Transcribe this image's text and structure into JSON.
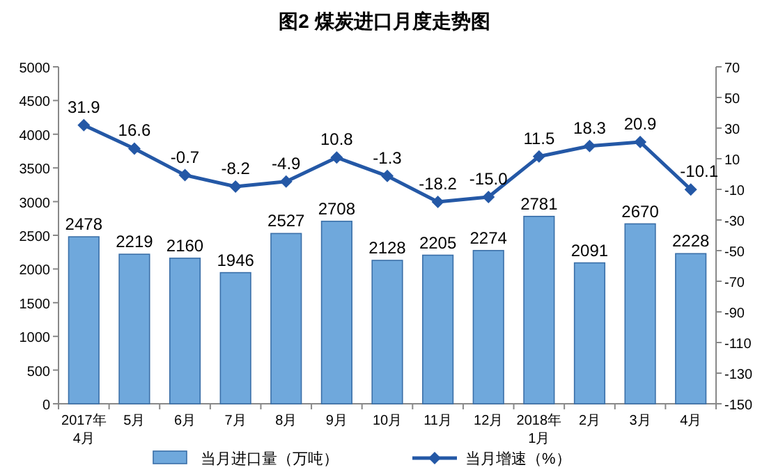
{
  "chart_data": {
    "type": "bar",
    "title": "图2  煤炭进口月度走势图",
    "categories": [
      "2017年\n4月",
      "5月",
      "6月",
      "7月",
      "8月",
      "9月",
      "10月",
      "11月",
      "12月",
      "2018年\n1月",
      "2月",
      "3月",
      "4月"
    ],
    "series": [
      {
        "name": "当月进口量（万吨）",
        "color": "#6fa8dc",
        "values": [
          2478,
          2219,
          2160,
          1946,
          2527,
          2708,
          2128,
          2205,
          2274,
          2781,
          2091,
          2670,
          2228
        ]
      },
      {
        "name": "当月增速（%）",
        "type": "line",
        "axis": "y2",
        "color": "#2458a6",
        "values": [
          31.9,
          16.6,
          -0.7,
          -8.2,
          -4.9,
          10.8,
          -1.3,
          -18.2,
          -15.0,
          11.5,
          18.3,
          20.9,
          -10.1
        ],
        "value_labels": [
          "31.9",
          "16.6",
          "-0.7",
          "-8.2",
          "-4.9",
          "10.8",
          "-1.3",
          "-18.2",
          "-15.0",
          "11.5",
          "18.3",
          "20.9",
          "-10.1"
        ]
      }
    ],
    "ylim": [
      0,
      5000
    ],
    "yticks": [
      0,
      500,
      1000,
      1500,
      2000,
      2500,
      3000,
      3500,
      4000,
      4500,
      5000
    ],
    "y2lim": [
      -150,
      70
    ],
    "y2ticks": [
      -150,
      -130,
      -110,
      -90,
      -70,
      -50,
      -30,
      -10,
      10,
      30,
      50,
      70
    ],
    "data_labels": true,
    "marker": "diamond",
    "legend": "bottom"
  }
}
